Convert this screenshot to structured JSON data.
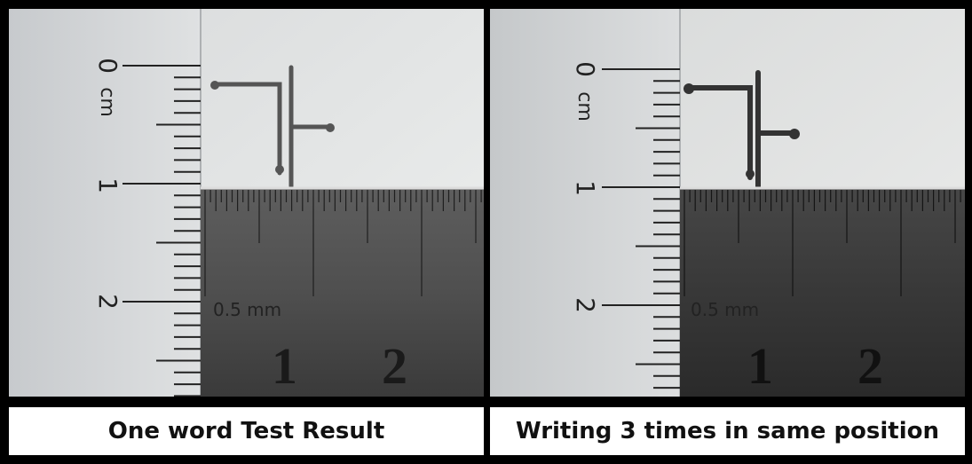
{
  "figure": {
    "panels": [
      {
        "caption": "One word Test Result",
        "vertical_ruler": {
          "labels": [
            "0",
            "1",
            "2"
          ],
          "unit": "cm"
        },
        "horizontal_ruler": {
          "label": "0.5 mm",
          "numbers": [
            "1",
            "2"
          ]
        }
      },
      {
        "caption": "Writing 3 times in same position",
        "vertical_ruler": {
          "labels": [
            "0",
            "1",
            "2"
          ],
          "unit": "cm"
        },
        "horizontal_ruler": {
          "label": "0.5 mm",
          "numbers": [
            "1",
            "2"
          ]
        }
      }
    ]
  }
}
